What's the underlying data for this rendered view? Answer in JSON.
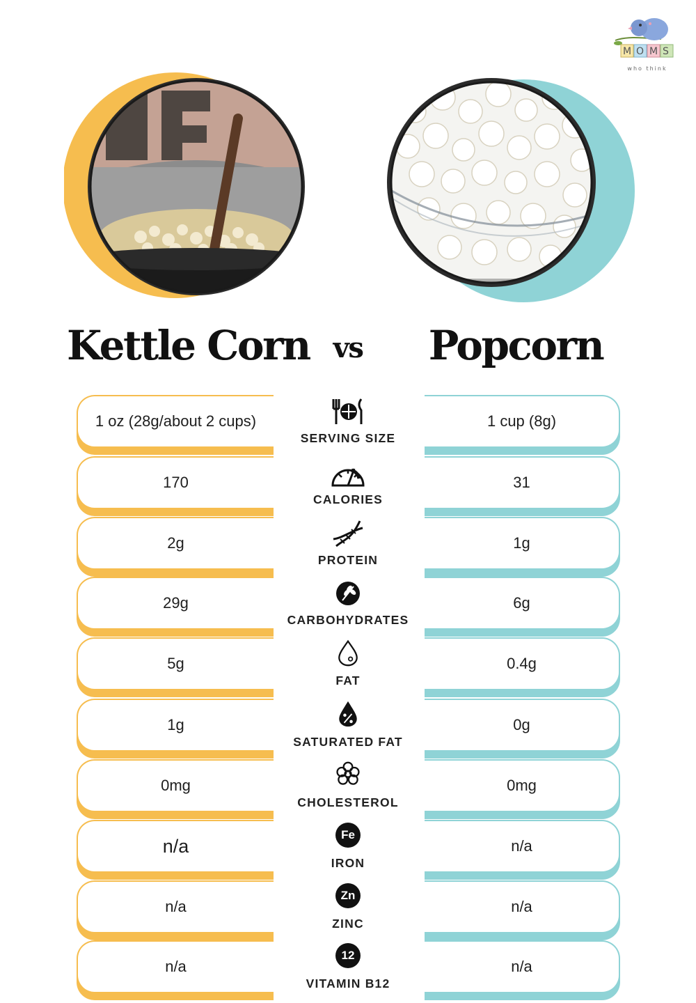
{
  "brand": {
    "logo_blocks": [
      "M",
      "O",
      "M",
      "S"
    ],
    "tagline": "who think"
  },
  "colors": {
    "kettle": "#f6bd4f",
    "popcorn": "#8fd3d6",
    "badge": "#111111"
  },
  "title_left": "Kettle Corn",
  "vs": "vs",
  "title_right": "Popcorn",
  "rows": [
    {
      "label": "SERVING SIZE",
      "icon": "utensils-plate-icon",
      "left": "1 oz (28g/about 2 cups)",
      "right": "1 cup (8g)"
    },
    {
      "label": "CALORIES",
      "icon": "gauge-icon",
      "left": "170",
      "right": "31"
    },
    {
      "label": "PROTEIN",
      "icon": "dna-icon",
      "left": "2g",
      "right": "1g"
    },
    {
      "label": "CARBOHYDRATES",
      "icon": "wheat-icon",
      "left": "29g",
      "right": "6g"
    },
    {
      "label": "FAT",
      "icon": "drop-icon",
      "left": "5g",
      "right": "0.4g"
    },
    {
      "label": "SATURATED FAT",
      "icon": "percent-drop-icon",
      "left": "1g",
      "right": "0g"
    },
    {
      "label": "CHOLESTEROL",
      "icon": "molecule-icon",
      "left": "0mg",
      "right": "0mg"
    },
    {
      "label": "IRON",
      "icon": "iron-badge-icon",
      "badge": "Fe",
      "left": "n/a",
      "right": "n/a"
    },
    {
      "label": "ZINC",
      "icon": "zinc-badge-icon",
      "badge": "Zn",
      "left": "n/a",
      "right": "n/a"
    },
    {
      "label": "VITAMIN B12",
      "icon": "b12-badge-icon",
      "badge": "12",
      "left": "n/a",
      "right": "n/a"
    }
  ]
}
